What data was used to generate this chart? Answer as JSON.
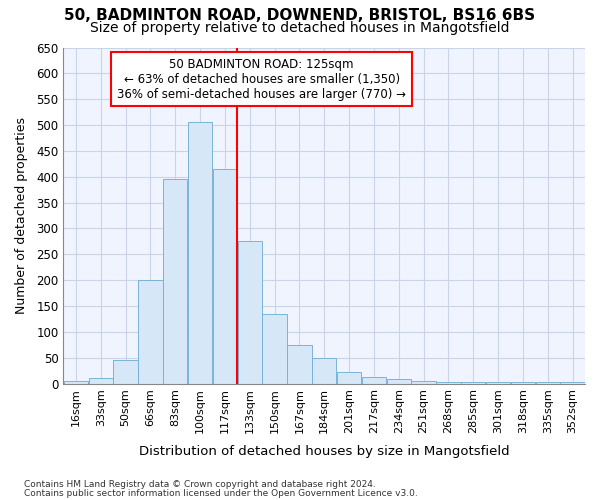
{
  "title_line1": "50, BADMINTON ROAD, DOWNEND, BRISTOL, BS16 6BS",
  "title_line2": "Size of property relative to detached houses in Mangotsfield",
  "xlabel": "Distribution of detached houses by size in Mangotsfield",
  "ylabel": "Number of detached properties",
  "categories": [
    "16sqm",
    "33sqm",
    "50sqm",
    "66sqm",
    "83sqm",
    "100sqm",
    "117sqm",
    "133sqm",
    "150sqm",
    "167sqm",
    "184sqm",
    "201sqm",
    "217sqm",
    "234sqm",
    "251sqm",
    "268sqm",
    "285sqm",
    "301sqm",
    "318sqm",
    "335sqm",
    "352sqm"
  ],
  "values": [
    5,
    10,
    45,
    200,
    395,
    505,
    415,
    275,
    135,
    75,
    50,
    22,
    12,
    8,
    5,
    2,
    2,
    2,
    2,
    2,
    2
  ],
  "bar_color": "#d6e8f7",
  "bar_edge_color": "#7ab3d8",
  "red_line_bar_index": 6,
  "annotation_line1": "50 BADMINTON ROAD: 125sqm",
  "annotation_line2": "← 63% of detached houses are smaller (1,350)",
  "annotation_line3": "36% of semi-detached houses are larger (770) →",
  "ylim": [
    0,
    650
  ],
  "yticks": [
    0,
    50,
    100,
    150,
    200,
    250,
    300,
    350,
    400,
    450,
    500,
    550,
    600,
    650
  ],
  "footnote1": "Contains HM Land Registry data © Crown copyright and database right 2024.",
  "footnote2": "Contains public sector information licensed under the Open Government Licence v3.0.",
  "background_color": "#ffffff",
  "plot_bg_color": "#f0f4ff",
  "grid_color": "#c8d4e8",
  "title1_fontsize": 11,
  "title2_fontsize": 10
}
